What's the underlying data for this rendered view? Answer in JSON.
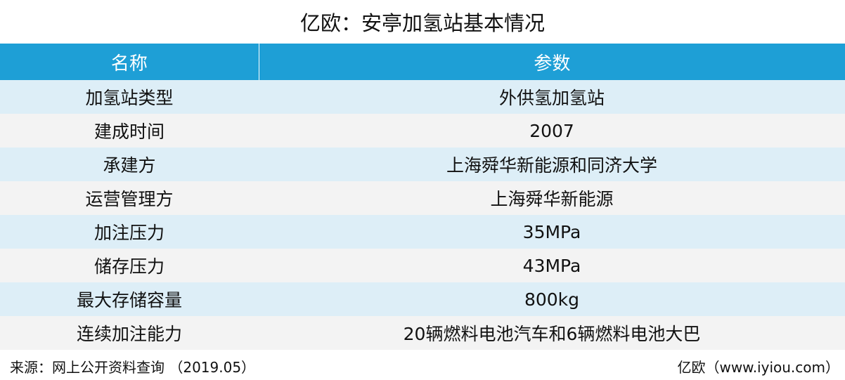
{
  "title": "亿欧：安亭加氢站基本情况",
  "table": {
    "headers": [
      "名称",
      "参数"
    ],
    "rows": [
      [
        "加氢站类型",
        "外供氢加氢站"
      ],
      [
        "建成时间",
        "2007"
      ],
      [
        "承建方",
        "上海舜华新能源和同济大学"
      ],
      [
        "运营管理方",
        "上海舜华新能源"
      ],
      [
        "加注压力",
        "35MPa"
      ],
      [
        "储存压力",
        "43MPa"
      ],
      [
        "最大存储容量",
        "800kg"
      ],
      [
        "连续加注能力",
        "20辆燃料电池汽车和6辆燃料电池大巴"
      ]
    ]
  },
  "footer": {
    "source": "来源：网上公开资料查询 （2019.05）",
    "credit": "亿欧（www.iyiou.com）"
  },
  "colors": {
    "header_bg": "#1e9fd6",
    "row_even_bg": "#ddeef7",
    "row_odd_bg": "#f3f3f3"
  }
}
